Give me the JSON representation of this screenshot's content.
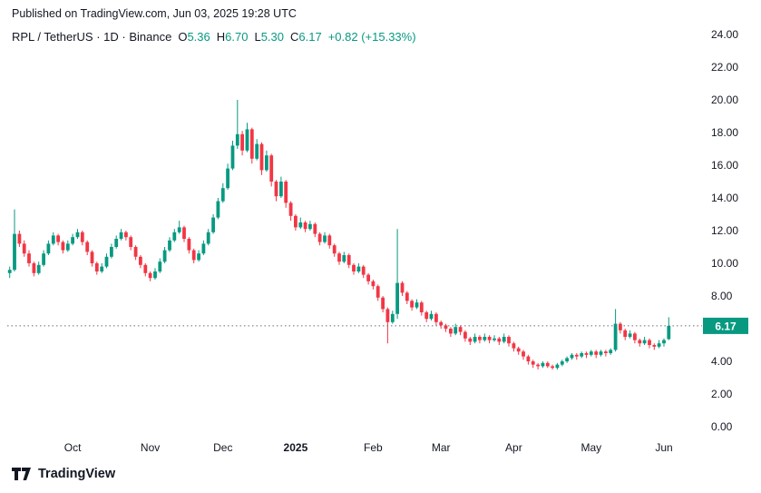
{
  "publish_line": "Published on TradingView.com, Jun 03, 2025 19:28 UTC",
  "legend": {
    "symbol": "RPL / TetherUS · 1D · Binance",
    "o_label": "O",
    "o_value": "5.36",
    "h_label": "H",
    "h_value": "6.70",
    "l_label": "L",
    "l_value": "5.30",
    "c_label": "C",
    "c_value": "6.17",
    "change_value": "+0.82 (+15.33%)"
  },
  "footer": {
    "brand": "TradingView"
  },
  "colors": {
    "up": "#089981",
    "down": "#F23645",
    "text": "#131722",
    "line": "#6a6d78"
  },
  "chart_data": {
    "type": "candlestick",
    "title": "RPL / TetherUS · 1D · Binance",
    "exchange": "Binance",
    "interval": "1D",
    "ylim": [
      0,
      24
    ],
    "y_ticks": [
      "24.00",
      "22.00",
      "20.00",
      "18.00",
      "16.00",
      "14.00",
      "12.00",
      "10.00",
      "8.00",
      "6.00",
      "4.00",
      "2.00",
      "0.00"
    ],
    "x_ticks": [
      {
        "label": "Oct",
        "index": 13,
        "bold": false
      },
      {
        "label": "Nov",
        "index": 29,
        "bold": false
      },
      {
        "label": "Dec",
        "index": 44,
        "bold": false
      },
      {
        "label": "2025",
        "index": 59,
        "bold": true
      },
      {
        "label": "Feb",
        "index": 75,
        "bold": false
      },
      {
        "label": "Mar",
        "index": 89,
        "bold": false
      },
      {
        "label": "Apr",
        "index": 104,
        "bold": false
      },
      {
        "label": "May",
        "index": 120,
        "bold": false
      },
      {
        "label": "Jun",
        "index": 135,
        "bold": false
      }
    ],
    "last_price": "6.17",
    "last_price_value": 6.17,
    "up_color": "#089981",
    "down_color": "#F23645",
    "candles": [
      [
        9.4,
        9.8,
        9.1,
        9.6
      ],
      [
        9.6,
        13.3,
        9.5,
        11.8
      ],
      [
        11.8,
        12.0,
        11.0,
        11.2
      ],
      [
        11.2,
        11.4,
        10.4,
        10.6
      ],
      [
        10.6,
        10.8,
        9.8,
        10.0
      ],
      [
        10.0,
        10.1,
        9.2,
        9.4
      ],
      [
        9.4,
        10.1,
        9.3,
        9.9
      ],
      [
        9.9,
        10.8,
        9.8,
        10.6
      ],
      [
        10.6,
        11.4,
        10.5,
        11.2
      ],
      [
        11.2,
        11.9,
        11.1,
        11.7
      ],
      [
        11.7,
        11.8,
        11.1,
        11.3
      ],
      [
        11.3,
        11.4,
        10.6,
        10.8
      ],
      [
        10.8,
        11.4,
        10.7,
        11.2
      ],
      [
        11.2,
        11.8,
        11.1,
        11.6
      ],
      [
        11.6,
        12.1,
        11.5,
        11.9
      ],
      [
        11.9,
        12.0,
        11.1,
        11.3
      ],
      [
        11.3,
        11.4,
        10.5,
        10.7
      ],
      [
        10.7,
        10.8,
        9.8,
        10.0
      ],
      [
        10.0,
        10.1,
        9.3,
        9.5
      ],
      [
        9.5,
        10.0,
        9.4,
        9.8
      ],
      [
        9.8,
        10.6,
        9.7,
        10.4
      ],
      [
        10.4,
        11.2,
        10.3,
        11.0
      ],
      [
        11.0,
        11.7,
        10.9,
        11.5
      ],
      [
        11.5,
        12.1,
        11.4,
        11.9
      ],
      [
        11.9,
        12.0,
        11.4,
        11.6
      ],
      [
        11.6,
        11.7,
        10.8,
        11.0
      ],
      [
        11.0,
        11.1,
        10.2,
        10.4
      ],
      [
        10.4,
        10.5,
        9.7,
        9.9
      ],
      [
        9.9,
        10.0,
        9.2,
        9.4
      ],
      [
        9.4,
        9.5,
        8.9,
        9.1
      ],
      [
        9.1,
        9.7,
        9.0,
        9.5
      ],
      [
        9.5,
        10.3,
        9.4,
        10.1
      ],
      [
        10.1,
        11.0,
        10.0,
        10.8
      ],
      [
        10.8,
        11.6,
        10.7,
        11.4
      ],
      [
        11.4,
        12.1,
        11.3,
        11.9
      ],
      [
        11.9,
        12.6,
        11.8,
        12.2
      ],
      [
        12.2,
        12.3,
        11.3,
        11.5
      ],
      [
        11.5,
        11.6,
        10.6,
        10.8
      ],
      [
        10.8,
        10.9,
        10.0,
        10.2
      ],
      [
        10.2,
        10.8,
        10.1,
        10.6
      ],
      [
        10.6,
        11.4,
        10.5,
        11.2
      ],
      [
        11.2,
        12.1,
        11.1,
        11.9
      ],
      [
        11.9,
        13.0,
        11.8,
        12.8
      ],
      [
        12.8,
        14.0,
        12.7,
        13.8
      ],
      [
        13.8,
        14.9,
        13.7,
        14.6
      ],
      [
        14.6,
        16.1,
        14.5,
        15.8
      ],
      [
        15.8,
        17.5,
        15.7,
        17.2
      ],
      [
        17.2,
        20.0,
        17.0,
        17.9
      ],
      [
        17.9,
        18.1,
        16.6,
        16.9
      ],
      [
        16.9,
        18.6,
        16.8,
        18.2
      ],
      [
        18.2,
        18.3,
        16.1,
        16.4
      ],
      [
        16.4,
        17.6,
        16.3,
        17.3
      ],
      [
        17.3,
        17.4,
        15.4,
        15.7
      ],
      [
        15.7,
        16.9,
        15.6,
        16.6
      ],
      [
        16.6,
        16.7,
        14.7,
        15.0
      ],
      [
        15.0,
        15.1,
        13.8,
        14.1
      ],
      [
        14.1,
        15.3,
        14.0,
        15.0
      ],
      [
        15.0,
        15.1,
        13.4,
        13.7
      ],
      [
        13.7,
        13.8,
        12.6,
        12.9
      ],
      [
        12.9,
        13.0,
        12.0,
        12.2
      ],
      [
        12.2,
        12.8,
        12.1,
        12.5
      ],
      [
        12.5,
        12.6,
        11.9,
        12.1
      ],
      [
        12.1,
        12.6,
        12.0,
        12.4
      ],
      [
        12.4,
        12.5,
        11.6,
        11.8
      ],
      [
        11.8,
        11.9,
        11.1,
        11.3
      ],
      [
        11.3,
        11.9,
        11.2,
        11.7
      ],
      [
        11.7,
        11.8,
        10.9,
        11.1
      ],
      [
        11.1,
        11.2,
        10.4,
        10.6
      ],
      [
        10.6,
        10.7,
        9.9,
        10.1
      ],
      [
        10.1,
        10.7,
        10.0,
        10.5
      ],
      [
        10.5,
        10.6,
        9.7,
        9.9
      ],
      [
        9.9,
        10.0,
        9.3,
        9.5
      ],
      [
        9.5,
        10.0,
        9.4,
        9.8
      ],
      [
        9.8,
        9.9,
        9.1,
        9.3
      ],
      [
        9.3,
        9.4,
        8.7,
        8.9
      ],
      [
        8.9,
        9.0,
        8.4,
        8.6
      ],
      [
        8.6,
        8.7,
        7.7,
        7.9
      ],
      [
        7.9,
        8.0,
        7.0,
        7.2
      ],
      [
        7.2,
        7.3,
        5.1,
        6.4
      ],
      [
        6.4,
        7.1,
        6.3,
        6.9
      ],
      [
        6.9,
        12.1,
        6.6,
        8.8
      ],
      [
        8.8,
        8.9,
        8.0,
        8.2
      ],
      [
        8.2,
        8.3,
        7.5,
        7.7
      ],
      [
        7.7,
        7.8,
        7.1,
        7.3
      ],
      [
        7.3,
        7.8,
        7.2,
        7.6
      ],
      [
        7.6,
        7.7,
        6.8,
        7.0
      ],
      [
        7.0,
        7.1,
        6.4,
        6.6
      ],
      [
        6.6,
        7.1,
        6.5,
        6.9
      ],
      [
        6.9,
        7.0,
        6.2,
        6.4
      ],
      [
        6.4,
        6.5,
        6.0,
        6.2
      ],
      [
        6.2,
        6.3,
        5.8,
        6.0
      ],
      [
        6.0,
        6.1,
        5.5,
        5.7
      ],
      [
        5.7,
        6.3,
        5.6,
        6.1
      ],
      [
        6.1,
        6.2,
        5.6,
        5.8
      ],
      [
        5.8,
        5.9,
        5.2,
        5.4
      ],
      [
        5.4,
        5.5,
        5.0,
        5.2
      ],
      [
        5.2,
        5.7,
        5.1,
        5.5
      ],
      [
        5.5,
        5.6,
        5.1,
        5.3
      ],
      [
        5.3,
        5.7,
        5.2,
        5.5
      ],
      [
        5.5,
        5.6,
        5.1,
        5.3
      ],
      [
        5.3,
        5.6,
        5.2,
        5.4
      ],
      [
        5.4,
        5.5,
        5.0,
        5.2
      ],
      [
        5.2,
        5.7,
        5.1,
        5.5
      ],
      [
        5.5,
        5.6,
        4.9,
        5.1
      ],
      [
        5.1,
        5.2,
        4.6,
        4.8
      ],
      [
        4.8,
        4.9,
        4.4,
        4.6
      ],
      [
        4.6,
        4.7,
        4.1,
        4.3
      ],
      [
        4.3,
        4.4,
        3.8,
        4.0
      ],
      [
        4.0,
        4.1,
        3.6,
        3.8
      ],
      [
        3.8,
        3.9,
        3.5,
        3.7
      ],
      [
        3.7,
        4.0,
        3.6,
        3.9
      ],
      [
        3.9,
        4.0,
        3.6,
        3.7
      ],
      [
        3.7,
        3.8,
        3.5,
        3.6
      ],
      [
        3.6,
        3.9,
        3.5,
        3.8
      ],
      [
        3.8,
        4.1,
        3.7,
        4.0
      ],
      [
        4.0,
        4.3,
        3.9,
        4.2
      ],
      [
        4.2,
        4.5,
        4.1,
        4.4
      ],
      [
        4.4,
        4.5,
        4.1,
        4.3
      ],
      [
        4.3,
        4.6,
        4.2,
        4.5
      ],
      [
        4.5,
        4.6,
        4.2,
        4.4
      ],
      [
        4.4,
        4.7,
        4.3,
        4.6
      ],
      [
        4.6,
        4.7,
        4.2,
        4.4
      ],
      [
        4.4,
        4.7,
        4.3,
        4.6
      ],
      [
        4.6,
        4.7,
        4.3,
        4.5
      ],
      [
        4.5,
        4.8,
        4.4,
        4.7
      ],
      [
        4.7,
        7.2,
        4.6,
        6.3
      ],
      [
        6.3,
        6.4,
        5.7,
        5.9
      ],
      [
        5.9,
        6.0,
        5.3,
        5.5
      ],
      [
        5.5,
        5.9,
        5.4,
        5.7
      ],
      [
        5.7,
        5.8,
        5.1,
        5.3
      ],
      [
        5.3,
        5.4,
        4.9,
        5.1
      ],
      [
        5.1,
        5.5,
        5.0,
        5.3
      ],
      [
        5.3,
        5.4,
        4.8,
        5.0
      ],
      [
        5.0,
        5.1,
        4.7,
        4.9
      ],
      [
        4.9,
        5.3,
        4.8,
        5.1
      ],
      [
        5.1,
        5.4,
        4.9,
        5.3
      ],
      [
        5.36,
        6.7,
        5.3,
        6.17
      ]
    ]
  }
}
